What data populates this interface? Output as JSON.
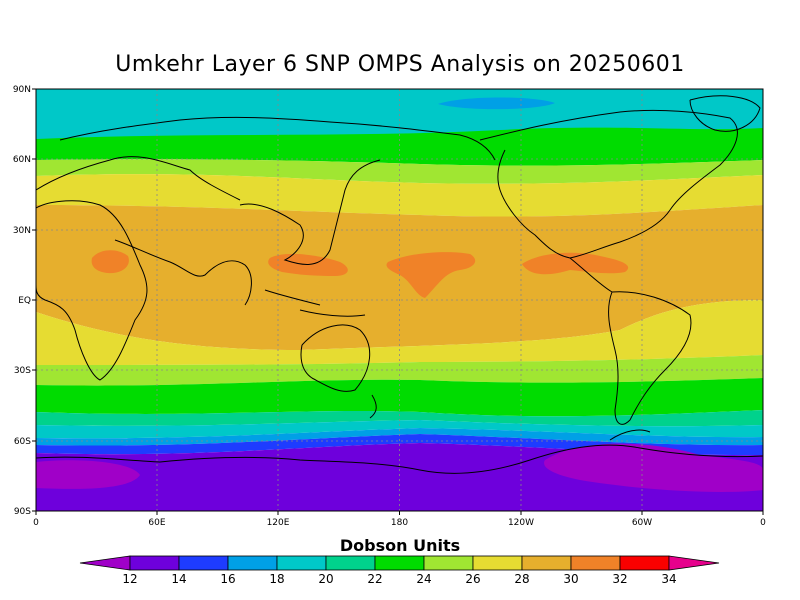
{
  "title": "Umkehr Layer 6 SNP OMPS Analysis on 20250601",
  "colorbar": {
    "title": "Dobson Units",
    "levels": [
      12,
      14,
      16,
      18,
      20,
      22,
      24,
      26,
      28,
      30,
      32,
      34
    ],
    "colors": [
      "#a000c8",
      "#6e00dc",
      "#1e3cff",
      "#00a0e6",
      "#00c8c8",
      "#00d28c",
      "#00dc00",
      "#a0e632",
      "#e6dc32",
      "#e6af2d",
      "#f08228",
      "#fa0000",
      "#e6008c"
    ]
  },
  "map": {
    "lat_labels": [
      "90N",
      "60N",
      "30N",
      "EQ",
      "30S",
      "60S",
      "90S"
    ],
    "lon_labels": [
      "0",
      "60E",
      "120E",
      "180",
      "120W",
      "60W",
      "0"
    ]
  }
}
